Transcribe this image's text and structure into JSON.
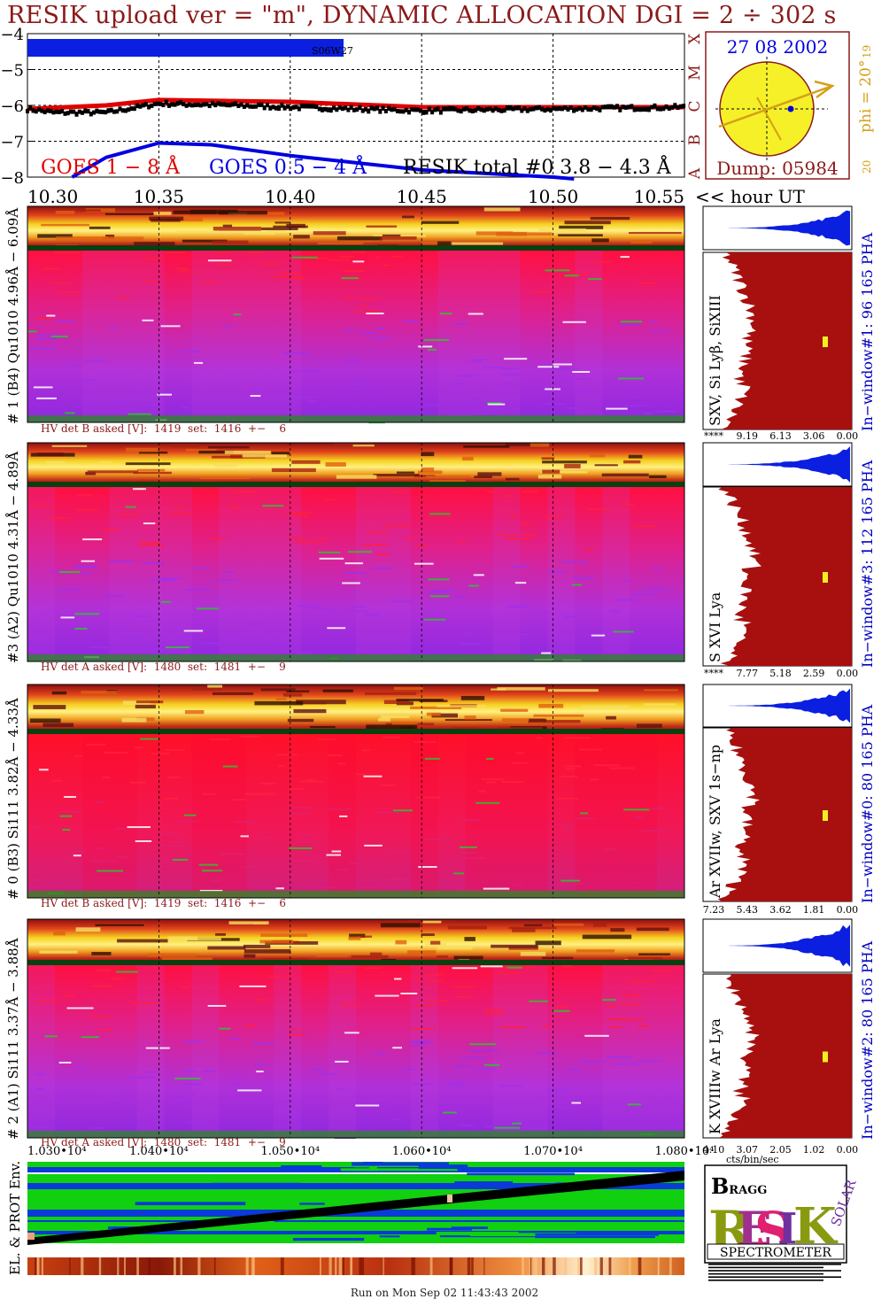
{
  "title": "RESIK upload ver = \"m\", DYNAMIC ALLOCATION  DGI =   2 ÷ 302 s",
  "footer": "Run on Mon Sep 02 11:43:43 2002",
  "colors": {
    "title": "#8b1a1a",
    "goes_long": "#e00000",
    "goes_short": "#0000e0",
    "resik_total": "#000000",
    "pha_bar": "#0a1fe0",
    "spectrum_fill": "#a80f0f",
    "sun_disk": "#f5f028",
    "sun_vector": "#d4a017"
  },
  "top_plot": {
    "y_ticks": [
      "−4",
      "−5",
      "−6",
      "−7",
      "−8"
    ],
    "x_ticks": [
      "10.30",
      "10.35",
      "10.40",
      "10.45",
      "10.50",
      "10.55"
    ],
    "x_unit": "<< hour UT",
    "flare_class_letters": [
      "X",
      "M",
      "C",
      "B",
      "A"
    ],
    "ar_label": "S06W27",
    "legend": {
      "goes_long": "GOES 1 − 8 Å",
      "goes_short": "GOES 0.5 − 4 Å",
      "resik_total": "RESIK total #0  3.8 − 4.3 Å"
    }
  },
  "sun_panel": {
    "date": "27 08 2002",
    "phi": "phi = 20°",
    "tick_top": "19",
    "tick_bottom": "20",
    "dump": "Dump: 05984"
  },
  "chart_data": [
    {
      "type": "line",
      "title": "",
      "xlabel": "<< hour UT",
      "ylabel": "",
      "xlim": [
        10.3,
        10.55
      ],
      "ylim": [
        -8,
        -4
      ],
      "series": [
        {
          "name": "GOES 1 − 8 Å",
          "x": [
            10.3,
            10.33,
            10.35,
            10.4,
            10.45,
            10.5,
            10.55
          ],
          "y": [
            -6.1,
            -6.0,
            -5.85,
            -5.9,
            -6.05,
            -6.05,
            -6.05
          ]
        },
        {
          "name": "GOES 0.5 − 4 Å",
          "x": [
            10.317,
            10.33,
            10.35,
            10.37,
            10.4,
            10.45,
            10.5,
            10.508
          ],
          "y": [
            -8.0,
            -7.45,
            -7.05,
            -7.1,
            -7.4,
            -7.8,
            -8.0,
            -8.05
          ]
        },
        {
          "name": "RESIK total #0  3.8 − 4.3 Å",
          "x": [
            10.3,
            10.31,
            10.33,
            10.35,
            10.38,
            10.4,
            10.45,
            10.5,
            10.55
          ],
          "y": [
            -6.1,
            -6.2,
            -6.2,
            -5.95,
            -6.0,
            -6.05,
            -6.15,
            -6.1,
            -6.05
          ]
        }
      ]
    }
  ],
  "detectors": [
    {
      "y_label": "# 1 (B4) Qu1010  4.96Å − 6.09Å",
      "line_label": "SXV, Si Lyβ, SiXIII",
      "in_window": "In−window#1:   96 165  PHA",
      "hv": "HV det B asked [V]:  1419  set:  1416  +−    6",
      "spec_ticks": [
        "****",
        "9.19",
        "6.13",
        "3.06",
        "0.00"
      ]
    },
    {
      "y_label": "#3 (A2) Qu1010  4.31Å − 4.89Å",
      "line_label": "S XVI Lya",
      "in_window": "In−window#3:  112 165  PHA",
      "hv": "HV det A asked [V]:  1480  set:  1481  +−    9",
      "spec_ticks": [
        "****",
        "7.77",
        "5.18",
        "2.59",
        "0.00"
      ]
    },
    {
      "y_label": "# 0 (B3) Si111  3.82Å − 4.33Å",
      "line_label": "Ar XVIIw,  SXV 1s−np",
      "in_window": "In−window#0:   80 165  PHA",
      "hv": "HV det B asked [V]:  1419  set:  1416  +−    6",
      "spec_ticks": [
        "7.23",
        "5.43",
        "3.62",
        "1.81",
        "0.00"
      ]
    },
    {
      "y_label": "# 2 (A1) Si111  3.37Å − 3.88Å",
      "line_label": "K XVIIIw  Ar Lya",
      "in_window": "In−window#2:   80 165  PHA",
      "hv": "HV det A asked [V]:  1480  set:  1481  +−    9",
      "spec_ticks": [
        "4.10",
        "3.07",
        "2.05",
        "1.02",
        "0.00"
      ]
    }
  ],
  "bottom_axis": {
    "ticks": [
      "1.030•10⁴",
      "1.040•10⁴",
      "1.050•10⁴",
      "1.060•10⁴",
      "1.070•10⁴",
      "1.080•10⁴"
    ],
    "spec_unit": "cts/bin/sec"
  },
  "env_panel": {
    "label": "EL. & PROT Env."
  },
  "logo": {
    "bragg": "BRAGG",
    "solar": "SOLAR",
    "resik": "RESIK",
    "spectrometer": "SPECTROMETER"
  }
}
